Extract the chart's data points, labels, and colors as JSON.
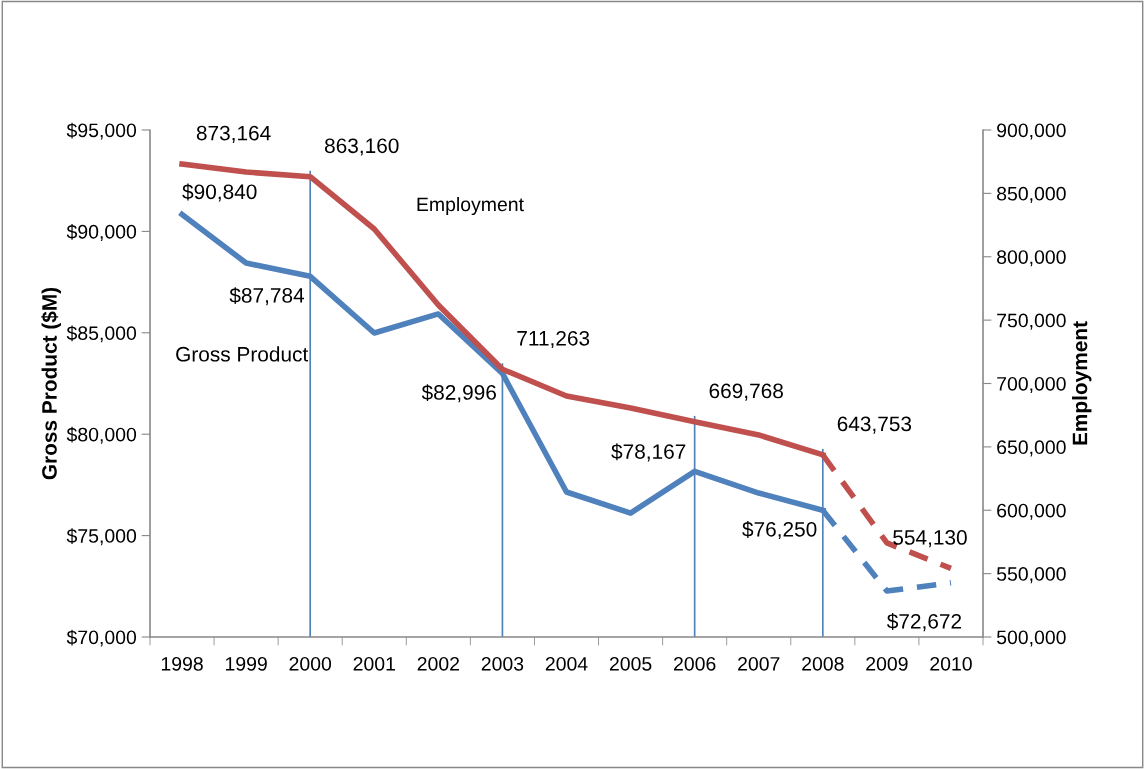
{
  "chart_data": {
    "type": "line",
    "ylabel": "Gross Product ($M)",
    "y2label": "Employment",
    "categories": [
      "1998",
      "1999",
      "2000",
      "2001",
      "2002",
      "2003",
      "2004",
      "2005",
      "2006",
      "2007",
      "2008",
      "2009",
      "2010"
    ],
    "series": [
      {
        "name": "Gross Product",
        "color": "#4f81bd",
        "line_style": "solid",
        "values": [
          90840,
          88440,
          87784,
          84990,
          85930,
          82996,
          77150,
          76110,
          78167,
          77100,
          76250,
          null,
          null
        ],
        "value_labels": [
          "$90,840",
          null,
          "$87,784",
          null,
          null,
          "$82,996",
          null,
          null,
          "$78,167",
          null,
          "$76,250",
          null,
          null
        ]
      },
      {
        "color": "#4f81bd",
        "line_style": "dashed",
        "values": [
          null,
          null,
          null,
          null,
          null,
          null,
          null,
          null,
          null,
          null,
          76250,
          72270,
          72672
        ],
        "value_labels": [
          null,
          null,
          null,
          null,
          null,
          null,
          null,
          null,
          null,
          null,
          null,
          null,
          "$72,672"
        ]
      },
      {
        "name": "Employment",
        "color": "#c0504d",
        "axis": "y2",
        "line_style": "solid",
        "values": [
          873164,
          866800,
          863160,
          821900,
          761900,
          711263,
          690100,
          680600,
          669768,
          659400,
          643753,
          null,
          null
        ],
        "value_labels": [
          "873,164",
          null,
          "863,160",
          null,
          null,
          "711,263",
          null,
          null,
          "669,768",
          null,
          "643,753",
          null,
          null
        ]
      },
      {
        "color": "#c0504d",
        "axis": "y2",
        "line_style": "dashed",
        "values": [
          null,
          null,
          null,
          null,
          null,
          null,
          null,
          null,
          null,
          null,
          643753,
          574200,
          554130
        ],
        "value_labels": [
          null,
          null,
          null,
          null,
          null,
          null,
          null,
          null,
          null,
          null,
          null,
          null,
          "554,130"
        ]
      }
    ],
    "ylim": [
      70000,
      95000
    ],
    "yticks": [
      {
        "value": 70000,
        "label": "$70,000"
      },
      {
        "value": 75000,
        "label": "$75,000"
      },
      {
        "value": 80000,
        "label": "$80,000"
      },
      {
        "value": 85000,
        "label": "$85,000"
      },
      {
        "value": 90000,
        "label": "$90,000"
      },
      {
        "value": 95000,
        "label": "$95,000"
      }
    ],
    "y2lim": [
      500000,
      900000
    ],
    "y2ticks": [
      {
        "value": 500000,
        "label": "500,000"
      },
      {
        "value": 550000,
        "label": "550,000"
      },
      {
        "value": 600000,
        "label": "600,000"
      },
      {
        "value": 650000,
        "label": "650,000"
      },
      {
        "value": 700000,
        "label": "700,000"
      },
      {
        "value": 750000,
        "label": "750,000"
      },
      {
        "value": 800000,
        "label": "800,000"
      },
      {
        "value": 850000,
        "label": "850,000"
      },
      {
        "value": 900000,
        "label": "900,000"
      }
    ],
    "ref_lines": [
      {
        "axis": "x",
        "value": "2000",
        "color": "#4f81bd"
      },
      {
        "axis": "x",
        "value": "2003",
        "color": "#4f81bd"
      },
      {
        "axis": "x",
        "value": "2006",
        "color": "#4f81bd"
      },
      {
        "axis": "x",
        "value": "2008",
        "color": "#4f81bd"
      }
    ],
    "grid": false,
    "legend": false
  }
}
